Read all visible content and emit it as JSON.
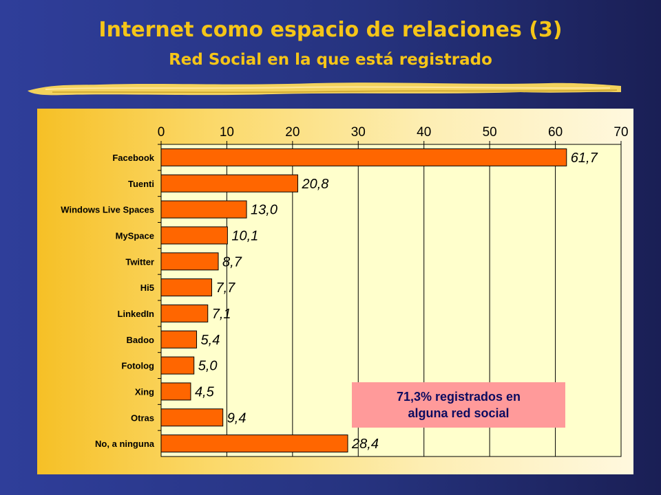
{
  "slide": {
    "title": "Internet como espacio de relaciones (3)",
    "subtitle": "Red Social en la que está registrado"
  },
  "colors": {
    "bar": "#ff6600",
    "title": "#f5c518",
    "plot_bg": "#ffffcc",
    "callout_bg": "#ff9a9a",
    "callout_text": "#0b0b60"
  },
  "callout": {
    "line1": "71,3% registrados en",
    "line2": "alguna red social"
  },
  "chart_data": {
    "type": "bar",
    "orientation": "horizontal",
    "categories": [
      "Facebook",
      "Tuenti",
      "Windows Live Spaces",
      "MySpace",
      "Twitter",
      "Hi5",
      "LinkedIn",
      "Badoo",
      "Fotolog",
      "Xing",
      "Otras",
      "No, a ninguna"
    ],
    "values": [
      61.7,
      20.8,
      13.0,
      10.1,
      8.7,
      7.7,
      7.1,
      5.4,
      5.0,
      4.5,
      9.4,
      28.4
    ],
    "value_labels": [
      "61,7",
      "20,8",
      "13,0",
      "10,1",
      "8,7",
      "7,7",
      "7,1",
      "5,4",
      "5,0",
      "4,5",
      "9,4",
      "28,4"
    ],
    "xlim": [
      0,
      70
    ],
    "ticks": [
      0,
      10,
      20,
      30,
      40,
      50,
      60,
      70
    ],
    "tick_labels": [
      "0",
      "10",
      "20",
      "30",
      "40",
      "50",
      "60",
      "70"
    ],
    "xaxis_position": "top",
    "grid": true,
    "legend": false
  }
}
